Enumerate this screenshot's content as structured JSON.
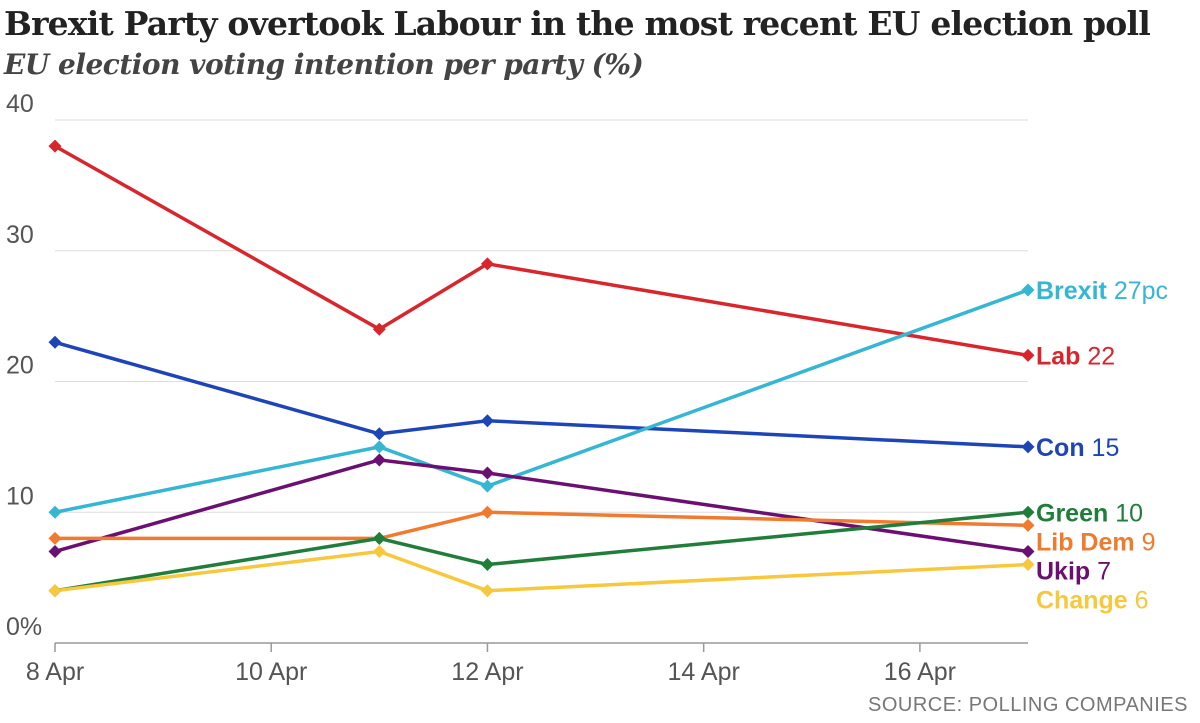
{
  "title": "Brexit Party overtook Labour in the most recent EU election poll",
  "subtitle": "EU election voting intention per party (%)",
  "source": "SOURCE: POLLING COMPANIES",
  "chart_data": {
    "type": "line",
    "title": "Brexit Party overtook Labour in the most recent EU election poll",
    "subtitle": "EU election voting intention per party (%)",
    "x": [
      "2019-04-08",
      "2019-04-11",
      "2019-04-12",
      "2019-04-17"
    ],
    "x_ticks": [
      {
        "date": "2019-04-08",
        "label": "8 Apr"
      },
      {
        "date": "2019-04-10",
        "label": "10 Apr"
      },
      {
        "date": "2019-04-12",
        "label": "12 Apr"
      },
      {
        "date": "2019-04-14",
        "label": "14 Apr"
      },
      {
        "date": "2019-04-16",
        "label": "16 Apr"
      }
    ],
    "xlim": [
      "2019-04-08",
      "2019-04-17"
    ],
    "y_ticks": [
      {
        "value": 0,
        "label": "0%"
      },
      {
        "value": 10,
        "label": "10"
      },
      {
        "value": 20,
        "label": "20"
      },
      {
        "value": 30,
        "label": "30"
      },
      {
        "value": 40,
        "label": "40"
      }
    ],
    "ylim": [
      0,
      40
    ],
    "grid": true,
    "series": [
      {
        "name": "Lab",
        "end_value": "22",
        "color": "#d8262c",
        "values": [
          38,
          24,
          29,
          22
        ]
      },
      {
        "name": "Con",
        "end_value": "15",
        "color": "#1e45b8",
        "values": [
          23,
          16,
          17,
          15
        ]
      },
      {
        "name": "Brexit",
        "end_value": "27pc",
        "color": "#35b6d2",
        "values": [
          10,
          15,
          12,
          27
        ]
      },
      {
        "name": "Ukip",
        "end_value": "7",
        "color": "#6c0f72",
        "values": [
          7,
          14,
          13,
          7
        ]
      },
      {
        "name": "Lib Dem",
        "end_value": "9",
        "color": "#f07a2e",
        "values": [
          8,
          8,
          10,
          9
        ]
      },
      {
        "name": "Green",
        "end_value": "10",
        "color": "#217d3a",
        "values": [
          4,
          8,
          6,
          10
        ]
      },
      {
        "name": "Change",
        "end_value": "6",
        "color": "#f7c83c",
        "values": [
          4,
          7,
          4,
          6
        ]
      }
    ]
  }
}
